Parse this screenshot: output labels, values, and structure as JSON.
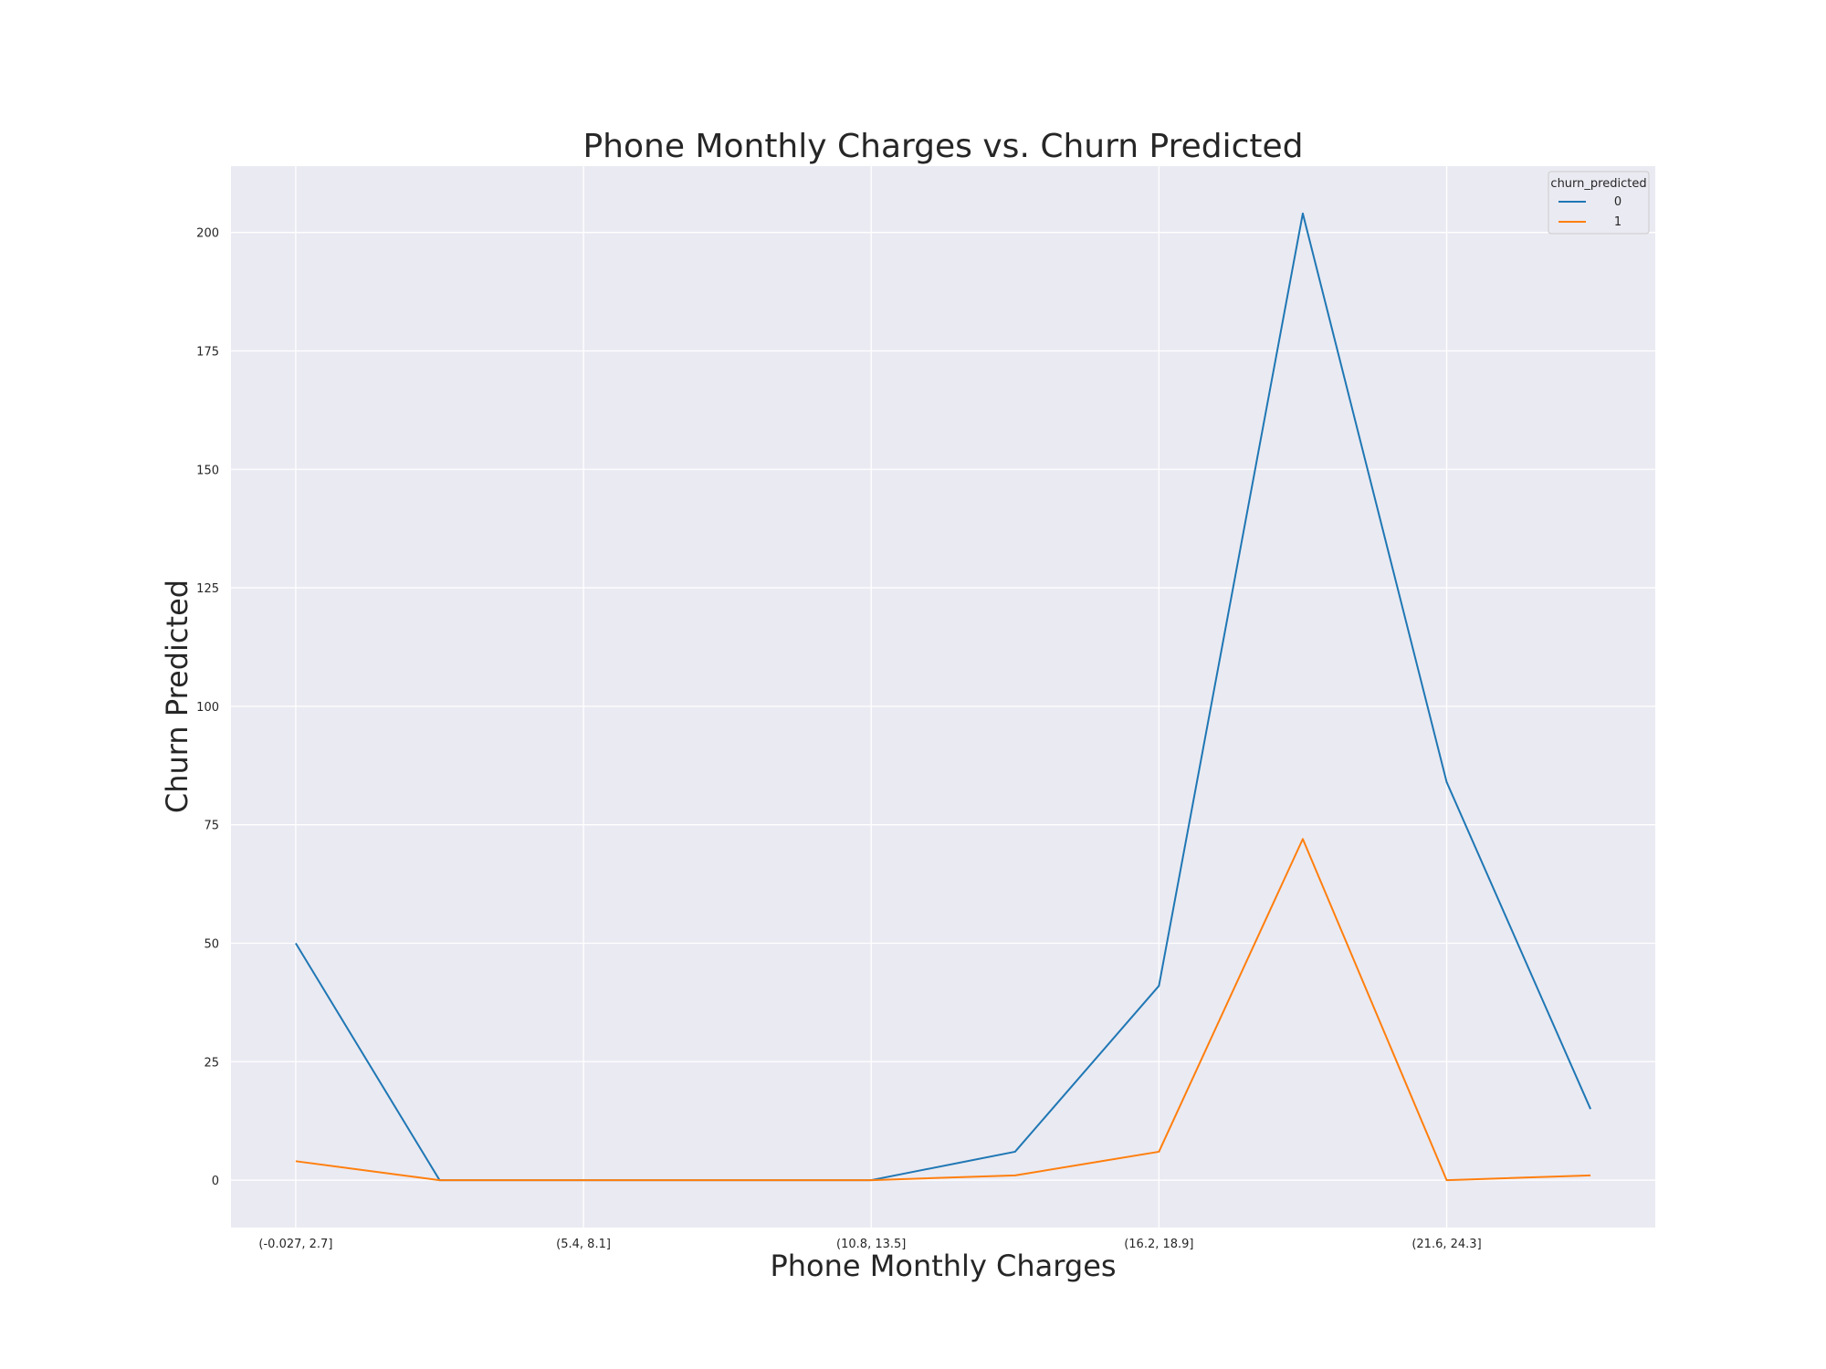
{
  "chart_data": {
    "type": "line",
    "title": "Phone Monthly Charges vs. Churn Predicted",
    "xlabel": "Phone Monthly Charges",
    "ylabel": "Churn Predicted",
    "x_tick_labels": [
      "(-0.027, 2.7]",
      "(5.4, 8.1]",
      "(10.8, 13.5]",
      "(16.2, 18.9]",
      "(21.6, 24.3]"
    ],
    "x_tick_positions": [
      0,
      2,
      4,
      6,
      8
    ],
    "x": [
      0,
      1,
      2,
      3,
      4,
      5,
      6,
      7,
      8,
      9
    ],
    "xlim": [
      -0.45,
      9.45
    ],
    "y_ticks": [
      0,
      25,
      50,
      75,
      100,
      125,
      150,
      175,
      200
    ],
    "ylim": [
      -10,
      214
    ],
    "grid": true,
    "legend": {
      "title": "churn_predicted",
      "placement": "top-right"
    },
    "series": [
      {
        "name": "0",
        "color": "#1f77b4",
        "values": [
          50,
          0,
          0,
          0,
          0,
          6,
          41,
          204,
          84,
          15
        ]
      },
      {
        "name": "1",
        "color": "#ff7f0e",
        "values": [
          4,
          0,
          0,
          0,
          0,
          1,
          6,
          72,
          0,
          1
        ]
      }
    ],
    "plot_background": "#eaeaf2",
    "grid_color": "#ffffff"
  }
}
